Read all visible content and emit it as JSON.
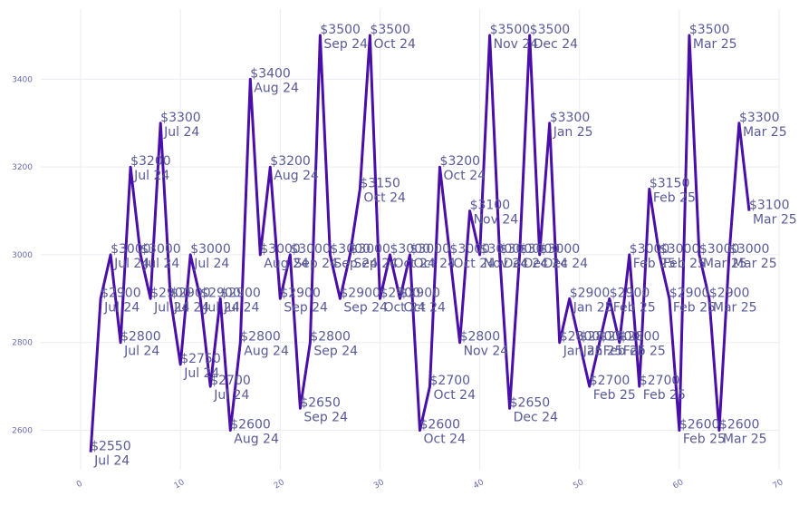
{
  "chart_data": {
    "type": "line",
    "title": "",
    "xlabel": "",
    "ylabel": "",
    "xlim": [
      -4,
      70
    ],
    "ylim": [
      2510,
      3560
    ],
    "x_ticks": [
      0,
      10,
      20,
      30,
      40,
      50,
      60,
      70
    ],
    "y_ticks": [
      2600,
      2800,
      3000,
      3200,
      3400
    ],
    "grid": true,
    "legend": "none",
    "line_color": "#4a0fa8",
    "series": [
      {
        "x": [
          1,
          2,
          3,
          4,
          5,
          6,
          7,
          8,
          9,
          10,
          11,
          12,
          13,
          14,
          15,
          16,
          17,
          18,
          19,
          20,
          21,
          22,
          23,
          24,
          25,
          26,
          27,
          28,
          29,
          30,
          31,
          32,
          33,
          34,
          35,
          36,
          37,
          38,
          39,
          40,
          41,
          42,
          43,
          44,
          45,
          46,
          47,
          48,
          49,
          50,
          51,
          52,
          53,
          54,
          55,
          56,
          57,
          58,
          59,
          60,
          61,
          62,
          63,
          64,
          65,
          66,
          67
        ],
        "values": [
          2550,
          2900,
          3000,
          2800,
          3200,
          3000,
          2900,
          3300,
          2900,
          2750,
          3000,
          2900,
          2700,
          2900,
          2600,
          2800,
          3400,
          3000,
          3200,
          2900,
          3000,
          2650,
          2800,
          3500,
          3000,
          2900,
          3000,
          3150,
          3500,
          2900,
          3000,
          2900,
          3000,
          2600,
          2700,
          3200,
          3000,
          2800,
          3100,
          3000,
          3500,
          3000,
          2650,
          3000,
          3500,
          3000,
          3300,
          2800,
          2900,
          2800,
          2700,
          2800,
          2900,
          2800,
          3000,
          2700,
          3150,
          3000,
          2900,
          2600,
          3500,
          3000,
          2900,
          2600,
          3000,
          3300,
          3100
        ],
        "labels": [
          "$2550\nJul 24",
          "$2900\nJul 24",
          "$3000\nJul 24",
          "$2800\nJul 24",
          "$3200\nJul 24",
          "$3000\nJul 24",
          "$2900\nJul 24",
          "$3300\nJul 24",
          "$2900\nJul 24",
          "$2750\nJul 24",
          "$3000\nJul 24",
          "$2900\nJul 24",
          "$2700\nJul 24",
          "$2900\nJul 24",
          "$2600\nAug 24",
          "$2800\nAug 24",
          "$3400\nAug 24",
          "$3000\nAug 24",
          "$3200\nAug 24",
          "$2900\nSep 24",
          "$3000\nSep 24",
          "$2650\nSep 24",
          "$2800\nSep 24",
          "$3500\nSep 24",
          "$3000\nSep 24",
          "$2900\nSep 24",
          "$3000\nSep 24",
          "$3150\nOct 24",
          "$3500\nOct 24",
          "$2900\nOct 24",
          "$3000\nOct 24",
          "$2900\nOct 24",
          "$3000\nOct 24",
          "$2600\nOct 24",
          "$2700\nOct 24",
          "$3200\nOct 24",
          "$3000\nOct 24",
          "$2800\nNov 24",
          "$3100\nNov 24",
          "$3000\nNov 24",
          "$3500\nNov 24",
          "$3000\nDec 24",
          "$2650\nDec 24",
          "$3000\nDec 24",
          "$3500\nDec 24",
          "$3000\nDec 24",
          "$3300\nJan 25",
          "$2800\nJan 25",
          "$2900\nJan 25",
          "$2800\nJan 25",
          "$2700\nFeb 25",
          "$2800\nFeb 25",
          "$2900\nFeb 25",
          "$2800\nFeb 25",
          "$3000\nFeb 25",
          "$2700\nFeb 25",
          "$3150\nFeb 25",
          "$3000\nFeb 25",
          "$2900\nFeb 25",
          "$2600\nFeb 25",
          "$3500\nMar 25",
          "$3000\nMar 25",
          "$2900\nMar 25",
          "$2600\nMar 25",
          "$3000\nMar 25",
          "$3300\nMar 25",
          "$3100\nMar 25"
        ]
      }
    ]
  }
}
